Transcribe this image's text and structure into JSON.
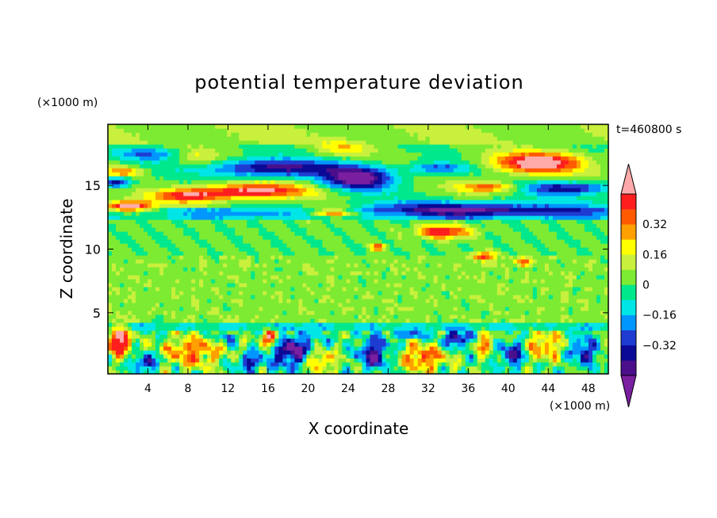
{
  "chart_data": {
    "type": "heatmap",
    "title": "potential temperature deviation",
    "xlabel": "X coordinate",
    "ylabel": "Z coordinate",
    "x_unit": "(×1000 m)",
    "y_unit": "(×1000 m)",
    "time_label": "t=460800 s",
    "xlim": [
      0,
      50
    ],
    "ylim": [
      0.2,
      19.8
    ],
    "x_ticks": [
      4,
      8,
      12,
      16,
      20,
      24,
      28,
      32,
      36,
      40,
      44,
      48
    ],
    "y_ticks": [
      5,
      10,
      15
    ],
    "colorbar": {
      "levels": [
        -0.48,
        -0.4,
        -0.32,
        -0.24,
        -0.16,
        -0.08,
        0,
        0.08,
        0.16,
        0.24,
        0.32,
        0.4,
        0.48
      ],
      "colors": [
        "#7a1fa0",
        "#4b0f8c",
        "#0a0a96",
        "#1e3cd2",
        "#0096ff",
        "#00e6e6",
        "#00e88c",
        "#7ceb32",
        "#c8f03c",
        "#ffff00",
        "#ffa000",
        "#ff5a00",
        "#ff1e1e",
        "#ffaaaa"
      ],
      "labels": [
        {
          "value": 0.32,
          "text": "0.32"
        },
        {
          "value": 0.16,
          "text": "0.16"
        },
        {
          "value": 0,
          "text": "0"
        },
        {
          "value": -0.16,
          "text": "−0.16"
        },
        {
          "value": -0.32,
          "text": "−0.32"
        }
      ]
    },
    "features": [
      {
        "kind": "warm",
        "x": 43,
        "z": 16.8,
        "rx": 4.5,
        "rz": 0.8,
        "amp": 0.55
      },
      {
        "kind": "warm",
        "x": 14.5,
        "z": 14.6,
        "rx": 5.5,
        "rz": 0.6,
        "amp": 0.5
      },
      {
        "kind": "warm",
        "x": 8,
        "z": 14.2,
        "rx": 3.5,
        "rz": 0.5,
        "amp": 0.4
      },
      {
        "kind": "warm",
        "x": 2,
        "z": 13.4,
        "rx": 2.5,
        "rz": 0.4,
        "amp": 0.55
      },
      {
        "kind": "warm",
        "x": 22.5,
        "z": 12.9,
        "rx": 2.5,
        "rz": 0.4,
        "amp": 0.55
      },
      {
        "kind": "warm",
        "x": 33.5,
        "z": 11.4,
        "rx": 2.5,
        "rz": 0.5,
        "amp": 0.5
      },
      {
        "kind": "warm",
        "x": 38,
        "z": 14.9,
        "rx": 3,
        "rz": 0.4,
        "amp": 0.35
      },
      {
        "kind": "warm",
        "x": 1.5,
        "z": 16.1,
        "rx": 2,
        "rz": 0.4,
        "amp": 0.3
      },
      {
        "kind": "warm",
        "x": 23.5,
        "z": 18,
        "rx": 2.5,
        "rz": 0.6,
        "amp": 0.18
      },
      {
        "kind": "warm",
        "x": 9,
        "z": 17.2,
        "rx": 2,
        "rz": 0.6,
        "amp": 0.14
      },
      {
        "kind": "cold",
        "x": 16.5,
        "z": 16.4,
        "rx": 6.5,
        "rz": 0.7,
        "amp": -0.45
      },
      {
        "kind": "cold",
        "x": 25,
        "z": 15.6,
        "rx": 3.5,
        "rz": 0.9,
        "amp": -0.55
      },
      {
        "kind": "cold",
        "x": 36,
        "z": 13.2,
        "rx": 12,
        "rz": 0.6,
        "amp": -0.4
      },
      {
        "kind": "cold",
        "x": 46,
        "z": 14.8,
        "rx": 4.5,
        "rz": 0.5,
        "amp": -0.4
      },
      {
        "kind": "cold",
        "x": 33,
        "z": 16.4,
        "rx": 3,
        "rz": 0.4,
        "amp": -0.3
      },
      {
        "kind": "cold",
        "x": 4,
        "z": 17.5,
        "rx": 3,
        "rz": 0.5,
        "amp": -0.25
      },
      {
        "kind": "cold",
        "x": 0.8,
        "z": 15.3,
        "rx": 1.6,
        "rz": 0.4,
        "amp": -0.45
      },
      {
        "kind": "cold",
        "x": 15,
        "z": 12.8,
        "rx": 5,
        "rz": 0.3,
        "amp": -0.12
      },
      {
        "kind": "warm",
        "x": 27,
        "z": 10.2,
        "rx": 0.7,
        "rz": 0.25,
        "amp": 0.45
      },
      {
        "kind": "warm",
        "x": 37.5,
        "z": 9.5,
        "rx": 1.2,
        "rz": 0.3,
        "amp": 0.4
      },
      {
        "kind": "warm",
        "x": 41.5,
        "z": 9,
        "rx": 0.8,
        "rz": 0.3,
        "amp": 0.35
      },
      {
        "kind": "warm",
        "x": 1,
        "z": 2.8,
        "rx": 1.3,
        "rz": 1.1,
        "amp": 0.55
      },
      {
        "kind": "warm",
        "x": 16.2,
        "z": 3,
        "rx": 0.9,
        "rz": 0.7,
        "amp": 0.55
      },
      {
        "kind": "warm",
        "x": 8.5,
        "z": 2,
        "rx": 2.8,
        "rz": 1.2,
        "amp": 0.35
      },
      {
        "kind": "warm",
        "x": 21,
        "z": 1.3,
        "rx": 1.6,
        "rz": 0.9,
        "amp": 0.4
      },
      {
        "kind": "warm",
        "x": 31.5,
        "z": 1.5,
        "rx": 2.2,
        "rz": 1,
        "amp": 0.38
      },
      {
        "kind": "warm",
        "x": 43.5,
        "z": 2.4,
        "rx": 1.8,
        "rz": 1.1,
        "amp": 0.32
      },
      {
        "kind": "warm",
        "x": 37.5,
        "z": 2.7,
        "rx": 0.8,
        "rz": 0.9,
        "amp": 0.35
      },
      {
        "kind": "cold",
        "x": 3.8,
        "z": 1.1,
        "rx": 1.2,
        "rz": 0.6,
        "amp": -0.45
      },
      {
        "kind": "cold",
        "x": 18.5,
        "z": 2,
        "rx": 2.4,
        "rz": 1.3,
        "amp": -0.5
      },
      {
        "kind": "cold",
        "x": 14,
        "z": 1.1,
        "rx": 1.1,
        "rz": 0.6,
        "amp": -0.4
      },
      {
        "kind": "cold",
        "x": 26.5,
        "z": 1.8,
        "rx": 1.4,
        "rz": 1.2,
        "amp": -0.45
      },
      {
        "kind": "cold",
        "x": 35,
        "z": 3,
        "rx": 1.4,
        "rz": 0.6,
        "amp": -0.45
      },
      {
        "kind": "cold",
        "x": 40.5,
        "z": 1.8,
        "rx": 1.2,
        "rz": 1,
        "amp": -0.4
      },
      {
        "kind": "cold",
        "x": 47.5,
        "z": 2,
        "rx": 1.3,
        "rz": 1.1,
        "amp": -0.35
      },
      {
        "kind": "cold",
        "x": 12,
        "z": 3.1,
        "rx": 1,
        "rz": 0.4,
        "amp": -0.25
      },
      {
        "kind": "cold",
        "x": 30,
        "z": 3.3,
        "rx": 2,
        "rz": 0.3,
        "amp": -0.3
      }
    ]
  }
}
